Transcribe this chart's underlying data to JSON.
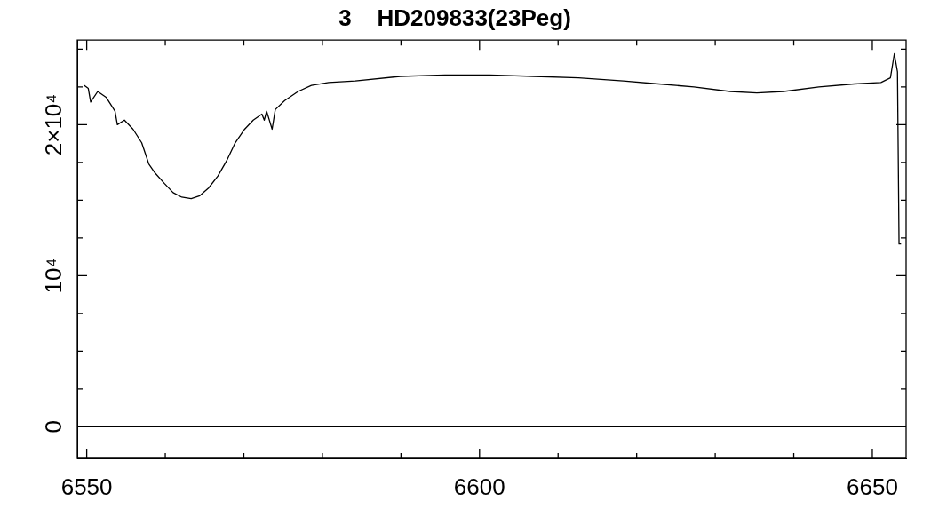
{
  "chart_data": {
    "type": "line",
    "title": "3    HD209833(23Peg)",
    "x": [
      6549.7,
      6550.2,
      6550.5,
      6551.4,
      6552.5,
      6553.6,
      6553.9,
      6554.8,
      6555.9,
      6557.0,
      6557.9,
      6558.7,
      6559.9,
      6561.0,
      6562.1,
      6563.3,
      6564.4,
      6565.5,
      6566.7,
      6567.8,
      6568.9,
      6570.1,
      6571.2,
      6572.3,
      6572.6,
      6572.9,
      6573.6,
      6574.0,
      6575.2,
      6576.9,
      6578.6,
      6580.8,
      6584.2,
      6589.9,
      6595.6,
      6601.3,
      6606.9,
      6612.6,
      6618.3,
      6622.8,
      6627.3,
      6631.9,
      6635.3,
      6638.7,
      6643.2,
      6647.7,
      6651.1,
      6652.3,
      6652.8,
      6653.2,
      6653.4,
      6653.6
    ],
    "series": [
      {
        "color": "#000000",
        "values": [
          22600,
          22400,
          21500,
          22200,
          21800,
          20900,
          20000,
          20300,
          19700,
          18800,
          17400,
          16800,
          16100,
          15500,
          15200,
          15100,
          15300,
          15800,
          16600,
          17600,
          18800,
          19700,
          20300,
          20700,
          20300,
          20900,
          19700,
          21000,
          21600,
          22200,
          22600,
          22800,
          22900,
          23200,
          23300,
          23300,
          23200,
          23100,
          22900,
          22700,
          22500,
          22200,
          22100,
          22200,
          22500,
          22700,
          22800,
          23100,
          24700,
          23500,
          12100,
          12100
        ]
      }
    ],
    "xlim": [
      6548.8,
      6654.3
    ],
    "xticks": [
      {
        "value": 6550,
        "label": "6550"
      },
      {
        "value": 6560,
        "label": null
      },
      {
        "value": 6570,
        "label": null
      },
      {
        "value": 6580,
        "label": null
      },
      {
        "value": 6590,
        "label": null
      },
      {
        "value": 6600,
        "label": "6600"
      },
      {
        "value": 6610,
        "label": null
      },
      {
        "value": 6620,
        "label": null
      },
      {
        "value": 6630,
        "label": null
      },
      {
        "value": 6640,
        "label": null
      },
      {
        "value": 6650,
        "label": "6650"
      }
    ],
    "ylim": [
      -2100,
      25600
    ],
    "yticks": [
      {
        "value": 0,
        "label": "0"
      },
      {
        "value": 2500,
        "label": null
      },
      {
        "value": 5000,
        "label": null
      },
      {
        "value": 7500,
        "label": null
      },
      {
        "value": 10000,
        "label": "10⁴"
      },
      {
        "value": 12500,
        "label": null
      },
      {
        "value": 15000,
        "label": null
      },
      {
        "value": 17500,
        "label": null
      },
      {
        "value": 20000,
        "label": "2×10⁴"
      },
      {
        "value": 22500,
        "label": null
      },
      {
        "value": 25000,
        "label": null
      }
    ],
    "ref_lines": [
      {
        "axis": "y",
        "value": 0,
        "color": "#000000"
      }
    ],
    "grid": false,
    "legend": false,
    "marker": "none",
    "line_style": "solid"
  }
}
